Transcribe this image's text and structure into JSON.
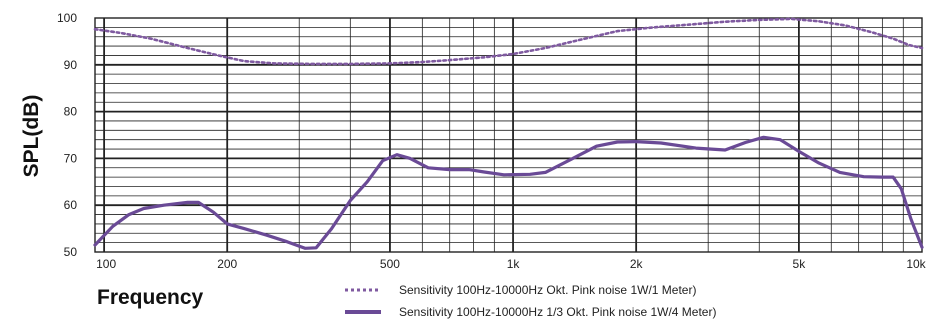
{
  "chart_data": {
    "type": "line",
    "xlabel": "Frequency",
    "ylabel": "SPL(dB)",
    "x_scale": "log",
    "xlim": [
      95,
      10000
    ],
    "ylim": [
      50,
      100
    ],
    "grid": true,
    "legend_position": "bottom",
    "x_ticks": [
      {
        "value": 100,
        "label": "100"
      },
      {
        "value": 200,
        "label": "200"
      },
      {
        "value": 500,
        "label": "500"
      },
      {
        "value": 1000,
        "label": "1k"
      },
      {
        "value": 2000,
        "label": "2k"
      },
      {
        "value": 5000,
        "label": "5k"
      },
      {
        "value": 10000,
        "label": "10k"
      }
    ],
    "y_ticks": [
      {
        "value": 100,
        "label": "100"
      },
      {
        "value": 90,
        "label": "90"
      },
      {
        "value": 80,
        "label": "80"
      },
      {
        "value": 70,
        "label": "70"
      },
      {
        "value": 60,
        "label": "60"
      },
      {
        "value": 50,
        "label": "50"
      }
    ],
    "series": [
      {
        "name": "Sensitivity 100Hz-10000Hz Okt. Pink noise 1W/1 Meter)",
        "style": "dotted",
        "color": "#7f5aa0",
        "points": [
          [
            95,
            97.6
          ],
          [
            110,
            96.8
          ],
          [
            130,
            95.6
          ],
          [
            160,
            93.6
          ],
          [
            190,
            92.0
          ],
          [
            220,
            90.8
          ],
          [
            260,
            90.3
          ],
          [
            320,
            90.2
          ],
          [
            400,
            90.2
          ],
          [
            500,
            90.3
          ],
          [
            600,
            90.6
          ],
          [
            700,
            91.0
          ],
          [
            850,
            91.6
          ],
          [
            1000,
            92.3
          ],
          [
            1200,
            93.6
          ],
          [
            1500,
            95.6
          ],
          [
            1800,
            97.2
          ],
          [
            2200,
            98.0
          ],
          [
            2700,
            98.6
          ],
          [
            3300,
            99.2
          ],
          [
            4000,
            99.6
          ],
          [
            4800,
            99.8
          ],
          [
            5600,
            99.3
          ],
          [
            6500,
            98.4
          ],
          [
            7500,
            97.0
          ],
          [
            8500,
            95.6
          ],
          [
            9300,
            94.2
          ],
          [
            10000,
            93.6
          ]
        ]
      },
      {
        "name": "Sensitivity 100Hz-10000Hz 1/3 Okt. Pink noise 1W/4 Meter)",
        "style": "solid",
        "color": "#6a4a96",
        "points": [
          [
            95,
            51.5
          ],
          [
            105,
            55.5
          ],
          [
            115,
            58.0
          ],
          [
            125,
            59.3
          ],
          [
            140,
            60.0
          ],
          [
            160,
            60.6
          ],
          [
            170,
            60.6
          ],
          [
            185,
            58.5
          ],
          [
            200,
            56.0
          ],
          [
            220,
            55.0
          ],
          [
            250,
            53.6
          ],
          [
            280,
            52.2
          ],
          [
            310,
            50.8
          ],
          [
            330,
            50.9
          ],
          [
            360,
            55.0
          ],
          [
            400,
            61.0
          ],
          [
            440,
            65.0
          ],
          [
            480,
            69.5
          ],
          [
            520,
            70.8
          ],
          [
            560,
            70.0
          ],
          [
            620,
            68.0
          ],
          [
            700,
            67.6
          ],
          [
            780,
            67.6
          ],
          [
            850,
            67.1
          ],
          [
            950,
            66.5
          ],
          [
            1100,
            66.6
          ],
          [
            1200,
            67.0
          ],
          [
            1400,
            70.0
          ],
          [
            1600,
            72.6
          ],
          [
            1800,
            73.5
          ],
          [
            2000,
            73.6
          ],
          [
            2300,
            73.3
          ],
          [
            2800,
            72.2
          ],
          [
            3300,
            71.8
          ],
          [
            3700,
            73.4
          ],
          [
            4100,
            74.5
          ],
          [
            4500,
            74.0
          ],
          [
            5000,
            71.5
          ],
          [
            5600,
            69.0
          ],
          [
            6300,
            67.0
          ],
          [
            7200,
            66.1
          ],
          [
            8000,
            66.0
          ],
          [
            8500,
            66.0
          ],
          [
            8900,
            63.5
          ],
          [
            9400,
            57.0
          ],
          [
            10000,
            51.0
          ]
        ]
      }
    ]
  },
  "colors": {
    "grid": "#222222",
    "series_dotted": "#7f5aa0",
    "series_solid": "#6a4a96"
  }
}
